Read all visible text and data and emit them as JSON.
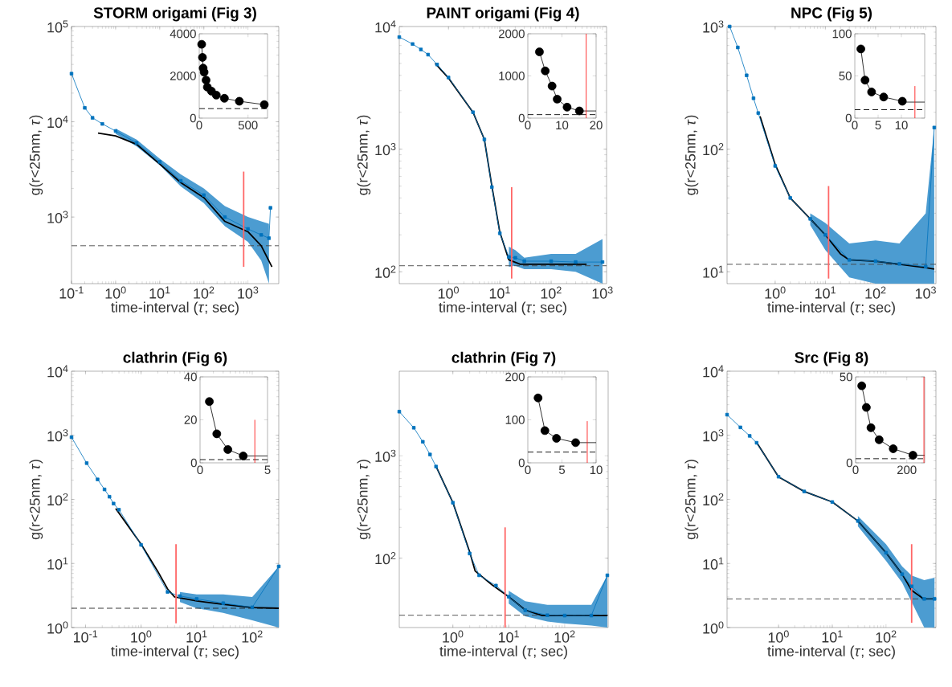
{
  "chart_data": [
    {
      "type": "line",
      "title": "STORM origami (Fig 3)",
      "xlabel": "time-interval (*τ*; sec)",
      "ylabel": "g(r<25nm, *τ*)",
      "log": "xy",
      "xlim": [
        0.1,
        5000
      ],
      "ylim": [
        200,
        100000
      ],
      "xticks": [
        {
          "value": 0.1,
          "label": "10$^{-1}$"
        },
        {
          "value": 1,
          "label": "10$^{0}$"
        },
        {
          "value": 10,
          "label": "10$^{1}$"
        },
        {
          "value": 100,
          "label": "10$^{2}$"
        },
        {
          "value": 1000,
          "label": "10$^{3}$"
        }
      ],
      "yticks": [
        {
          "value": 1000,
          "label": "10$^{3}$"
        },
        {
          "value": 10000,
          "label": "10$^{4}$"
        },
        {
          "value": 100000,
          "label": "10$^{5}$"
        }
      ],
      "series": [
        {
          "color": "#000000",
          "marker": "none",
          "x": [
            0.4,
            1,
            3,
            10,
            30,
            100,
            300,
            1000,
            2000,
            3500
          ],
          "values": [
            7600,
            7100,
            5800,
            3600,
            2300,
            1600,
            900,
            700,
            500,
            300
          ]
        },
        {
          "color": "#0072bd",
          "marker": "square",
          "x": [
            0.1,
            0.2,
            0.3,
            0.5,
            1,
            3,
            10,
            30,
            100,
            300,
            1000,
            2000,
            3000,
            3240
          ],
          "values": [
            32000,
            14000,
            11000,
            9500,
            8000,
            6000,
            3800,
            2400,
            1700,
            1000,
            750,
            650,
            600,
            1250
          ],
          "lower": [
            null,
            null,
            null,
            null,
            7500,
            5500,
            3500,
            2100,
            1400,
            800,
            550,
            350,
            200,
            null
          ],
          "upper": [
            null,
            null,
            null,
            null,
            8500,
            6500,
            4100,
            2800,
            2000,
            1300,
            1000,
            900,
            850,
            null
          ]
        },
        {
          "color": "#ff6666",
          "marker": "none",
          "x": [
            800,
            800
          ],
          "values": [
            300,
            3000
          ]
        }
      ],
      "ref_lines": [
        {
          "axis": "y",
          "value": 500,
          "color": "#444444",
          "line_style": "dashed"
        }
      ]
    },
    {
      "type": "line",
      "xlim": [
        0,
        700
      ],
      "ylim": [
        0,
        4000
      ],
      "xticks": [
        0,
        500
      ],
      "yticks": [
        0,
        2000,
        4000
      ],
      "series": [
        {
          "color": "#000000",
          "marker": "circle",
          "x": [
            25,
            33,
            40,
            50,
            70,
            83,
            125,
            175,
            258,
            411,
            667
          ],
          "values": [
            3500,
            2880,
            2370,
            2180,
            1800,
            1470,
            1280,
            1090,
            940,
            800,
            640
          ]
        }
      ],
      "ref_lines": [
        {
          "axis": "y",
          "value": 450,
          "color": "#000000",
          "line_style": "dashed"
        }
      ]
    },
    {
      "type": "line",
      "title": "PAINT origami (Fig 4)",
      "xlabel": "time-interval (*τ*; sec)",
      "ylabel": "g(r<25nm, *τ*)",
      "log": "xy",
      "xlim": [
        0.11,
        1200
      ],
      "ylim": [
        80,
        10000
      ],
      "xticks": [
        {
          "value": 1,
          "label": "10$^{0}$"
        },
        {
          "value": 10,
          "label": "10$^{1}$"
        },
        {
          "value": 100,
          "label": "10$^{2}$"
        },
        {
          "value": 1000,
          "label": "10$^{3}$"
        }
      ],
      "yticks": [
        {
          "value": 100,
          "label": "10$^{2}$"
        },
        {
          "value": 1000,
          "label": "10$^{3}$"
        },
        {
          "value": 10000,
          "label": "10$^{4}$"
        }
      ],
      "series": [
        {
          "color": "#000000",
          "marker": "none",
          "x": [
            0.55,
            1,
            3,
            5,
            7,
            10,
            15,
            25,
            100,
            490
          ],
          "values": [
            5000,
            3800,
            2000,
            1200,
            500,
            210,
            125,
            115,
            115,
            115
          ]
        },
        {
          "color": "#0072bd",
          "marker": "square",
          "x": [
            0.11,
            0.2,
            0.29,
            0.4,
            0.6,
            1,
            3,
            5,
            7,
            10,
            15,
            20,
            30,
            100,
            300,
            1000
          ],
          "values": [
            8200,
            7200,
            6500,
            5900,
            4900,
            3840,
            2000,
            1200,
            490,
            206,
            132,
            130,
            122,
            122,
            120,
            120
          ],
          "lower": [
            null,
            null,
            null,
            null,
            null,
            null,
            null,
            null,
            null,
            null,
            110,
            112,
            105,
            105,
            100,
            80
          ],
          "upper": [
            null,
            null,
            null,
            null,
            null,
            null,
            null,
            null,
            null,
            null,
            160,
            150,
            130,
            140,
            140,
            185
          ]
        },
        {
          "color": "#ff6666",
          "marker": "none",
          "x": [
            17,
            17
          ],
          "values": [
            88,
            490
          ]
        }
      ],
      "ref_lines": [
        {
          "axis": "y",
          "value": 112,
          "color": "#444444",
          "line_style": "dashed"
        }
      ]
    },
    {
      "type": "line",
      "xlim": [
        0,
        20
      ],
      "ylim": [
        0,
        2000
      ],
      "xticks": [
        0,
        10,
        20
      ],
      "yticks": [
        0,
        1000,
        2000
      ],
      "series": [
        {
          "color": "#000000",
          "marker": "circle",
          "x": [
            3.4,
            5.1,
            7.1,
            8.6,
            11.5,
            15.1
          ],
          "values": [
            1570,
            1120,
            760,
            450,
            260,
            170
          ]
        },
        {
          "color": "#000000",
          "marker": "none",
          "x": [
            15.1,
            20
          ],
          "values": [
            170,
            170
          ]
        },
        {
          "color": "#ff0000",
          "marker": "none",
          "x": [
            17.1,
            17.1
          ],
          "values": [
            0,
            2000
          ]
        }
      ],
      "ref_lines": [
        {
          "axis": "y",
          "value": 83,
          "color": "#000000",
          "line_style": "dashed"
        }
      ]
    },
    {
      "type": "line",
      "title": "NPC (Fig 5)",
      "xlabel": "time-interval (*τ*; sec)",
      "ylabel": "g(r<25nm, *τ*)",
      "log": "xy",
      "xlim": [
        0.11,
        1600
      ],
      "ylim": [
        8,
        1000
      ],
      "xticks": [
        {
          "value": 1,
          "label": "10$^{0}$"
        },
        {
          "value": 10,
          "label": "10$^{1}$"
        },
        {
          "value": 100,
          "label": "10$^{2}$"
        },
        {
          "value": 1000,
          "label": "10$^{3}$"
        }
      ],
      "yticks": [
        {
          "value": 10,
          "label": "10$^{1}$"
        },
        {
          "value": 100,
          "label": "10$^{2}$"
        },
        {
          "value": 1000,
          "label": "10$^{3}$"
        }
      ],
      "series": [
        {
          "color": "#000000",
          "marker": "none",
          "x": [
            0.5,
            1,
            2,
            5,
            10,
            20,
            30,
            100,
            300,
            1000,
            1480
          ],
          "values": [
            185,
            75,
            40,
            27,
            20,
            14,
            12.5,
            12.2,
            11.5,
            10.8,
            10.5
          ]
        },
        {
          "color": "#0072bd",
          "marker": "square",
          "x": [
            0.124,
            0.18,
            0.27,
            0.37,
            0.46,
            1,
            2,
            5,
            10,
            30,
            100,
            300,
            1000,
            1480
          ],
          "values": [
            1000,
            675,
            400,
            260,
            197,
            73,
            40,
            27,
            20,
            12.5,
            12.2,
            11.6,
            11,
            150
          ],
          "lower": [
            null,
            null,
            null,
            null,
            null,
            null,
            null,
            24,
            15,
            9,
            8,
            8,
            8,
            8
          ],
          "upper": [
            null,
            null,
            null,
            null,
            null,
            null,
            null,
            30,
            25,
            17,
            18,
            17,
            30,
            150
          ]
        },
        {
          "color": "#ff6666",
          "marker": "none",
          "x": [
            11.6,
            11.6
          ],
          "values": [
            8.8,
            50
          ]
        }
      ],
      "ref_lines": [
        {
          "axis": "y",
          "value": 11.5,
          "color": "#444444",
          "line_style": "dashed"
        }
      ]
    },
    {
      "type": "line",
      "xlim": [
        0,
        15
      ],
      "ylim": [
        0,
        100
      ],
      "xticks": [
        0,
        5,
        10
      ],
      "yticks": [
        0,
        50,
        100
      ],
      "series": [
        {
          "color": "#000000",
          "marker": "circle",
          "x": [
            1.3,
            2.2,
            3.6,
            6.2,
            10.2
          ],
          "values": [
            82,
            45,
            31,
            25,
            20
          ]
        },
        {
          "color": "#000000",
          "marker": "none",
          "x": [
            10.2,
            15
          ],
          "values": [
            19,
            19
          ]
        },
        {
          "color": "#ff0000",
          "marker": "none",
          "x": [
            12.9,
            12.9
          ],
          "values": [
            0,
            38
          ]
        }
      ],
      "ref_lines": [
        {
          "axis": "y",
          "value": 10,
          "color": "#000000",
          "line_style": "dashed"
        }
      ]
    },
    {
      "type": "line",
      "title": "clathrin (Fig 6)",
      "xlabel": "time-interval (*τ*; sec)",
      "ylabel": "g(r<25nm, *τ*)",
      "log": "xy",
      "xlim": [
        0.056,
        300
      ],
      "ylim": [
        1,
        10000
      ],
      "xticks": [
        {
          "value": 0.1,
          "label": "10$^{-1}$"
        },
        {
          "value": 1,
          "label": "10$^{0}$"
        },
        {
          "value": 10,
          "label": "10$^{1}$"
        },
        {
          "value": 100,
          "label": "10$^{2}$"
        }
      ],
      "yticks": [
        {
          "value": 1,
          "label": "10$^{0}$"
        },
        {
          "value": 10,
          "label": "10$^{1}$"
        },
        {
          "value": 100,
          "label": "10$^{2}$"
        },
        {
          "value": 1000,
          "label": "10$^{3}$"
        },
        {
          "value": 10000,
          "label": "10$^{4}$"
        }
      ],
      "series": [
        {
          "color": "#000000",
          "marker": "none",
          "x": [
            0.35,
            1,
            2,
            3,
            4,
            10,
            30,
            100,
            300
          ],
          "values": [
            72,
            20,
            7.5,
            4,
            3,
            2.6,
            2.3,
            2.05,
            2
          ]
        },
        {
          "color": "#0072bd",
          "marker": "square",
          "x": [
            0.056,
            0.105,
            0.165,
            0.22,
            0.27,
            0.32,
            0.4,
            1,
            3,
            5,
            10,
            30,
            100,
            300
          ],
          "values": [
            935,
            368,
            205,
            143,
            110,
            86,
            69,
            19.5,
            3.6,
            3.1,
            2.8,
            2.4,
            2.07,
            9
          ],
          "lower": [
            null,
            null,
            null,
            null,
            null,
            null,
            null,
            null,
            null,
            2.5,
            2,
            1.7,
            1.3,
            1
          ],
          "upper": [
            null,
            null,
            null,
            null,
            null,
            null,
            null,
            null,
            null,
            3.6,
            3.3,
            3.3,
            3,
            9
          ]
        },
        {
          "color": "#ff6666",
          "marker": "none",
          "x": [
            4.25,
            4.25
          ],
          "values": [
            1.16,
            20
          ]
        }
      ],
      "ref_lines": [
        {
          "axis": "y",
          "value": 2,
          "color": "#222222",
          "line_style": "dashed"
        }
      ]
    },
    {
      "type": "line",
      "xlim": [
        0,
        5
      ],
      "ylim": [
        0,
        40
      ],
      "xticks": [
        0,
        5
      ],
      "yticks": [
        0,
        20,
        40
      ],
      "series": [
        {
          "color": "#000000",
          "marker": "circle",
          "x": [
            0.69,
            1.24,
            2.06,
            3.2
          ],
          "values": [
            28.5,
            13.5,
            6.2,
            3.2
          ]
        },
        {
          "color": "#000000",
          "marker": "none",
          "x": [
            3.2,
            5
          ],
          "values": [
            3.2,
            3.2
          ]
        },
        {
          "color": "#ff0000",
          "marker": "none",
          "x": [
            4.06,
            4.06
          ],
          "values": [
            0,
            20
          ]
        }
      ],
      "ref_lines": [
        {
          "axis": "y",
          "value": 1.5,
          "color": "#000000",
          "line_style": "dashed"
        }
      ]
    },
    {
      "type": "line",
      "title": "clathrin (Fig 7)",
      "xlabel": "time-interval (*τ*; sec)",
      "ylabel": "g(r<25nm, *τ*)",
      "log": "xy",
      "xlim": [
        0.11,
        600
      ],
      "ylim": [
        21,
        6700
      ],
      "xticks": [
        {
          "value": 1,
          "label": "10$^{0}$"
        },
        {
          "value": 10,
          "label": "10$^{1}$"
        },
        {
          "value": 100,
          "label": "10$^{2}$"
        }
      ],
      "yticks": [
        {
          "value": 100,
          "label": "10$^{2}$"
        },
        {
          "value": 1000,
          "label": "10$^{3}$"
        }
      ],
      "series": [
        {
          "color": "#000000",
          "marker": "none",
          "x": [
            0.5,
            1,
            2,
            2.5,
            5,
            10,
            20,
            40,
            580
          ],
          "values": [
            790,
            350,
            115,
            75,
            55,
            42,
            31,
            27.5,
            27.5
          ]
        },
        {
          "color": "#0072bd",
          "marker": "square",
          "x": [
            0.11,
            0.2,
            0.29,
            0.39,
            0.5,
            1,
            2,
            2.95,
            5.9,
            10,
            19.7,
            49,
            100,
            300,
            580
          ],
          "values": [
            2700,
            1880,
            1370,
            1030,
            785,
            348,
            111,
            68,
            54,
            42,
            31,
            27.7,
            27.5,
            27.5,
            68
          ],
          "lower": [
            null,
            null,
            null,
            null,
            null,
            null,
            null,
            null,
            null,
            36,
            27,
            24,
            23,
            22,
            21
          ],
          "upper": [
            null,
            null,
            null,
            null,
            null,
            null,
            null,
            null,
            null,
            48,
            38,
            35,
            35,
            35,
            68
          ]
        },
        {
          "color": "#ff6666",
          "marker": "none",
          "x": [
            8.6,
            8.6
          ],
          "values": [
            21,
            200
          ]
        }
      ],
      "ref_lines": [
        {
          "axis": "y",
          "value": 27.7,
          "color": "#444444",
          "line_style": "dashed"
        }
      ]
    },
    {
      "type": "line",
      "xlim": [
        0,
        10
      ],
      "ylim": [
        0,
        200
      ],
      "xticks": [
        0,
        5,
        10
      ],
      "yticks": [
        0,
        100,
        200
      ],
      "series": [
        {
          "color": "#000000",
          "marker": "circle",
          "x": [
            1.5,
            2.5,
            4.2,
            7
          ],
          "values": [
            151,
            75,
            57,
            47
          ]
        },
        {
          "color": "#000000",
          "marker": "none",
          "x": [
            7,
            10
          ],
          "values": [
            47,
            47
          ]
        },
        {
          "color": "#ff0000",
          "marker": "none",
          "x": [
            8.7,
            8.7
          ],
          "values": [
            0,
            97
          ]
        }
      ],
      "ref_lines": [
        {
          "axis": "y",
          "value": 25,
          "color": "#000000",
          "line_style": "dashed"
        }
      ]
    },
    {
      "type": "line",
      "title": "Src (Fig 8)",
      "xlabel": "time-interval (*τ*; sec)",
      "ylabel": "g(r<25nm, *τ*)",
      "log": "xy",
      "xlim": [
        0.11,
        850
      ],
      "ylim": [
        1,
        10000
      ],
      "xticks": [
        {
          "value": 1,
          "label": "10$^{0}$"
        },
        {
          "value": 10,
          "label": "10$^{1}$"
        },
        {
          "value": 100,
          "label": "10$^{2}$"
        }
      ],
      "yticks": [
        {
          "value": 1,
          "label": "10$^{0}$"
        },
        {
          "value": 10,
          "label": "10$^{1}$"
        },
        {
          "value": 100,
          "label": "10$^{2}$"
        },
        {
          "value": 1000,
          "label": "10$^{3}$"
        },
        {
          "value": 10000,
          "label": "10$^{4}$"
        }
      ],
      "series": [
        {
          "color": "#000000",
          "marker": "none",
          "x": [
            0.4,
            1,
            3,
            10,
            30,
            100,
            200,
            300,
            500,
            800
          ],
          "values": [
            750,
            225,
            133,
            91,
            46,
            14.7,
            6.8,
            3.8,
            2.8,
            2.8
          ]
        },
        {
          "color": "#0072bd",
          "marker": "square",
          "x": [
            0.11,
            0.195,
            0.29,
            0.39,
            1,
            3,
            10,
            30,
            100,
            200,
            300,
            515,
            800
          ],
          "values": [
            2100,
            1330,
            980,
            765,
            226,
            133,
            91,
            46,
            14.7,
            6.8,
            4.4,
            2.8,
            2.8
          ],
          "lower": [
            null,
            null,
            null,
            null,
            null,
            null,
            null,
            38,
            11,
            5,
            2.5,
            1,
            1
          ],
          "upper": [
            null,
            null,
            null,
            null,
            null,
            null,
            null,
            55,
            20,
            9,
            6.5,
            5.5,
            6
          ]
        },
        {
          "color": "#ff6666",
          "marker": "none",
          "x": [
            300,
            300
          ],
          "values": [
            1.19,
            20
          ]
        }
      ],
      "ref_lines": [
        {
          "axis": "y",
          "value": 2.8,
          "color": "#444444",
          "line_style": "dashed"
        }
      ]
    },
    {
      "type": "line",
      "xlim": [
        0,
        270
      ],
      "ylim": [
        0,
        50
      ],
      "xticks": [
        0,
        200
      ],
      "yticks": [
        0,
        50
      ],
      "series": [
        {
          "color": "#000000",
          "marker": "circle",
          "x": [
            24,
            42,
            60,
            92,
            147,
            224
          ],
          "values": [
            44.8,
            32.2,
            20.4,
            13.4,
            8.2,
            4.4
          ]
        },
        {
          "color": "#000000",
          "marker": "none",
          "x": [
            224,
            270
          ],
          "values": [
            4.4,
            4.4
          ]
        },
        {
          "color": "#ff0000",
          "marker": "none",
          "x": [
            267,
            267
          ],
          "values": [
            0,
            50
          ]
        }
      ],
      "ref_lines": [
        {
          "axis": "y",
          "value": 2.4,
          "color": "#000000",
          "line_style": "dashed"
        }
      ]
    }
  ]
}
